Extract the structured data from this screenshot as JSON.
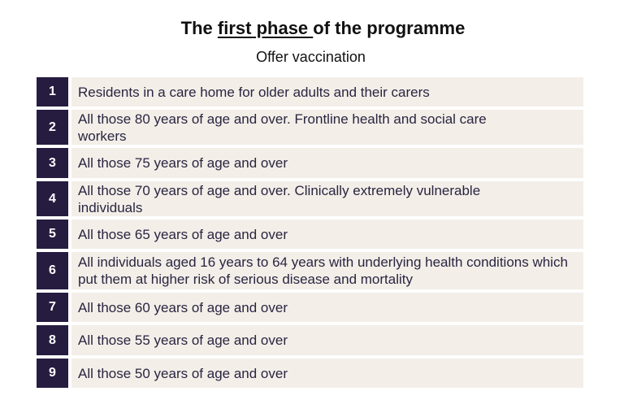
{
  "title": {
    "before": "The ",
    "underlined": "first phase ",
    "after": "of the programme"
  },
  "subtitle": "Offer vaccination",
  "colors": {
    "number_bg": "#261c40",
    "row_bg": "#f3eee8"
  },
  "rows": [
    {
      "num": "1",
      "text": "Residents in a care home for older adults and their carers"
    },
    {
      "num": "2",
      "text": "All those 80 years of age and over. Frontline health and social care workers"
    },
    {
      "num": "3",
      "text": "All those 75 years of age and over"
    },
    {
      "num": "4",
      "text": "All those 70 years of age and over. Clinically extremely vulnerable individuals"
    },
    {
      "num": "5",
      "text": "All those 65 years of age and over"
    },
    {
      "num": "6",
      "text": "All individuals aged 16 years to 64 years with underlying health conditions which put them at higher risk of serious disease and mortality"
    },
    {
      "num": "7",
      "text": "All those 60 years of age and over"
    },
    {
      "num": "8",
      "text": "All those 55 years of age and over"
    },
    {
      "num": "9",
      "text": "All those 50 years of age and over"
    }
  ]
}
